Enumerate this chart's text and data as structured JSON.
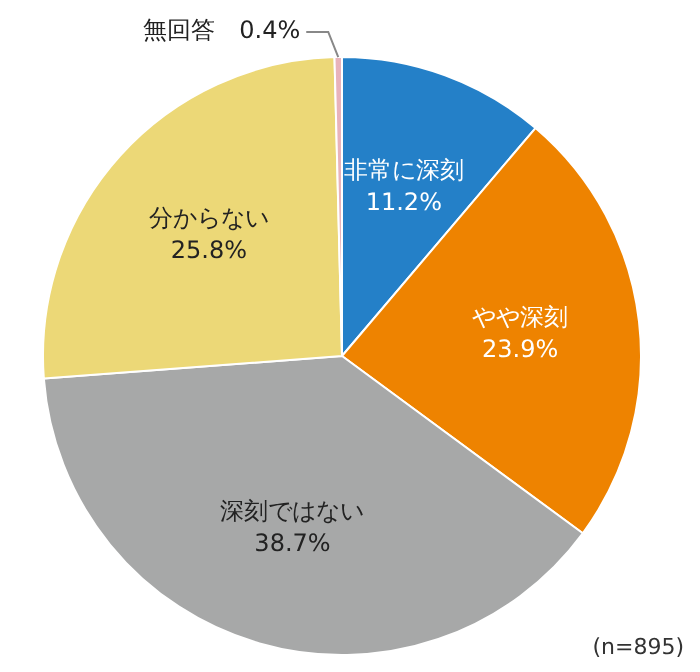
{
  "chart_data": {
    "type": "pie",
    "categories": [
      "非常に深刻",
      "やや深刻",
      "深刻ではない",
      "分からない",
      "無回答"
    ],
    "values": [
      11.2,
      23.9,
      38.7,
      25.8,
      0.4
    ],
    "colors": [
      "#2480c8",
      "#ee8300",
      "#a7a8a8",
      "#ecd877",
      "#e8b3bb"
    ],
    "value_labels": [
      "11.2%",
      "23.9%",
      "38.7%",
      "25.8%",
      "0.4%"
    ],
    "annotations": [
      "(n=895)"
    ],
    "legend": false
  }
}
